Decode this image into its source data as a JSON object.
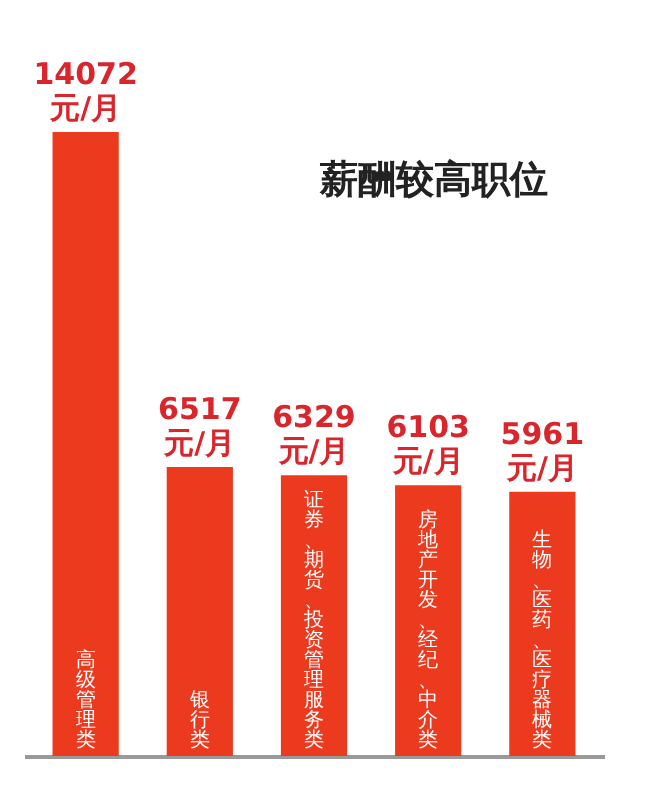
{
  "chart_data": {
    "type": "bar",
    "title": "薪酬较高职位",
    "categories": [
      "高级管理类",
      "银行类",
      "证券、期货、投资管理服务类",
      "房地产开发、经纪、中介类",
      "生物、医药、医疗器械类"
    ],
    "values": [
      14072,
      6517,
      6329,
      6103,
      5961
    ],
    "value_labels": [
      "14072 元/月",
      "6517 元/月",
      "6329 元/月",
      "6103 元/月",
      "5961 元/月"
    ],
    "color": "#ec3a1f",
    "grid": false
  }
}
